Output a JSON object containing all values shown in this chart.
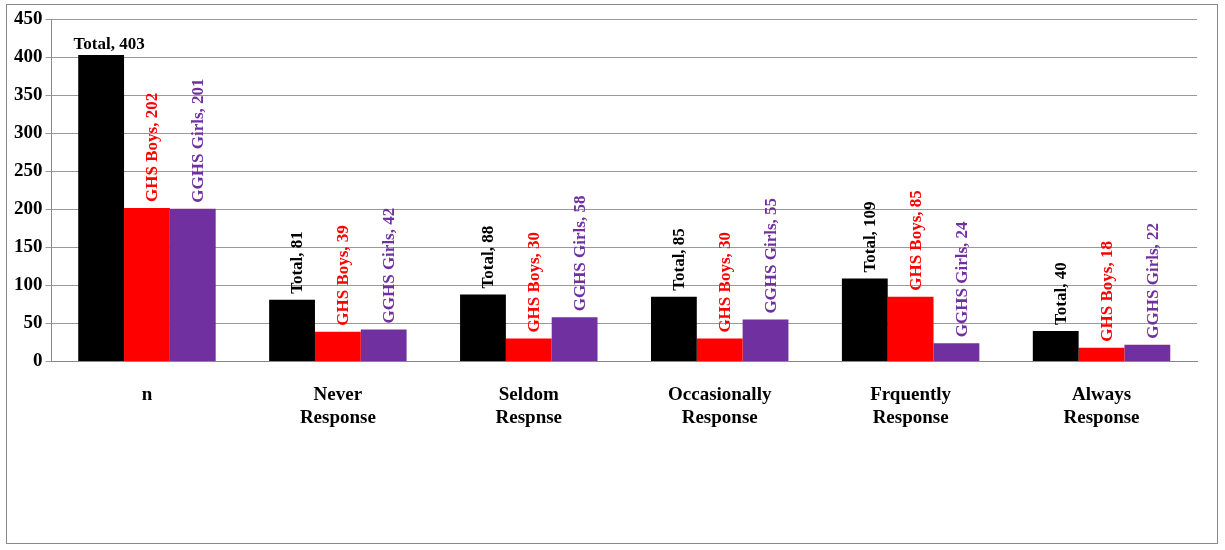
{
  "chart_data": {
    "type": "bar",
    "categories": [
      "n",
      "Never Response",
      "Seldom Respnse",
      "Occasionally Response",
      "Frquently Response",
      "Always Response"
    ],
    "series": [
      {
        "color": "#000000",
        "values": [
          403,
          81,
          88,
          85,
          109,
          40
        ],
        "value_labels": [
          "Total, 403",
          "Total, 81",
          "Total, 88",
          "Total, 85",
          "Total, 109",
          "Total, 40"
        ]
      },
      {
        "color": "#ff0000",
        "values": [
          202,
          39,
          30,
          30,
          85,
          18
        ],
        "value_labels": [
          "GHS Boys, 202",
          "GHS Boys, 39",
          "GHS Boys, 30",
          "GHS Boys, 30",
          "GHS Boys, 85",
          "GHS Boys, 18"
        ]
      },
      {
        "color": "#7030a0",
        "values": [
          201,
          42,
          58,
          55,
          24,
          22
        ],
        "value_labels": [
          "GGHS Girls, 201",
          "GGHS Girls, 42",
          "GGHS Girls, 58",
          "GGHS Girls, 55",
          "GGHS Girls, 24",
          "GGHS Girls, 22"
        ]
      }
    ],
    "ylim": [
      0,
      450
    ],
    "yticks": [
      0,
      50,
      100,
      150,
      200,
      250,
      300,
      350,
      400,
      450
    ],
    "grid": "y",
    "legend": false
  }
}
